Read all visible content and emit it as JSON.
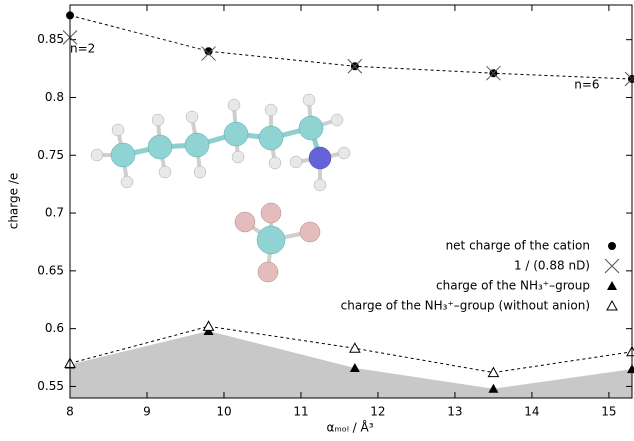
{
  "chart_data": {
    "type": "scatter",
    "x_label": "αₘₒₗ / Å³",
    "y_label": "charge /e",
    "xlim": [
      8,
      15.3
    ],
    "ylim": [
      0.54,
      0.88
    ],
    "xticks": [
      8,
      9,
      10,
      11,
      12,
      13,
      14,
      15
    ],
    "yticks": [
      0.55,
      0.6,
      0.65,
      0.7,
      0.75,
      0.8,
      0.85
    ],
    "annotations": [
      {
        "text": "n=2",
        "x": 8,
        "y": 0.842
      },
      {
        "text": "n=6",
        "x": 14.55,
        "y": 0.811
      }
    ],
    "x": [
      8,
      9.8,
      11.7,
      13.5,
      15.3
    ],
    "series": [
      {
        "name": "net charge of the cation",
        "color": "#000000",
        "marker": "circle",
        "dashed": true,
        "values": [
          0.871,
          0.84,
          0.827,
          0.821,
          0.816
        ]
      },
      {
        "name": "1 / (0.88 nD)",
        "color": "#555555",
        "marker": "x",
        "values": [
          0.852,
          0.838,
          0.827,
          0.821,
          0.816
        ]
      },
      {
        "name": "charge of the NH₃⁺–group",
        "color": "#000000",
        "marker": "triangle",
        "area": "#c8c8c8",
        "values": [
          0.569,
          0.598,
          0.566,
          0.548,
          0.565
        ]
      },
      {
        "name": "charge of the NH₃⁺–group (without anion)",
        "color": "#000000",
        "marker": "triangle-open",
        "dashed": true,
        "values": [
          0.57,
          0.602,
          0.583,
          0.562,
          0.58
        ]
      }
    ]
  }
}
